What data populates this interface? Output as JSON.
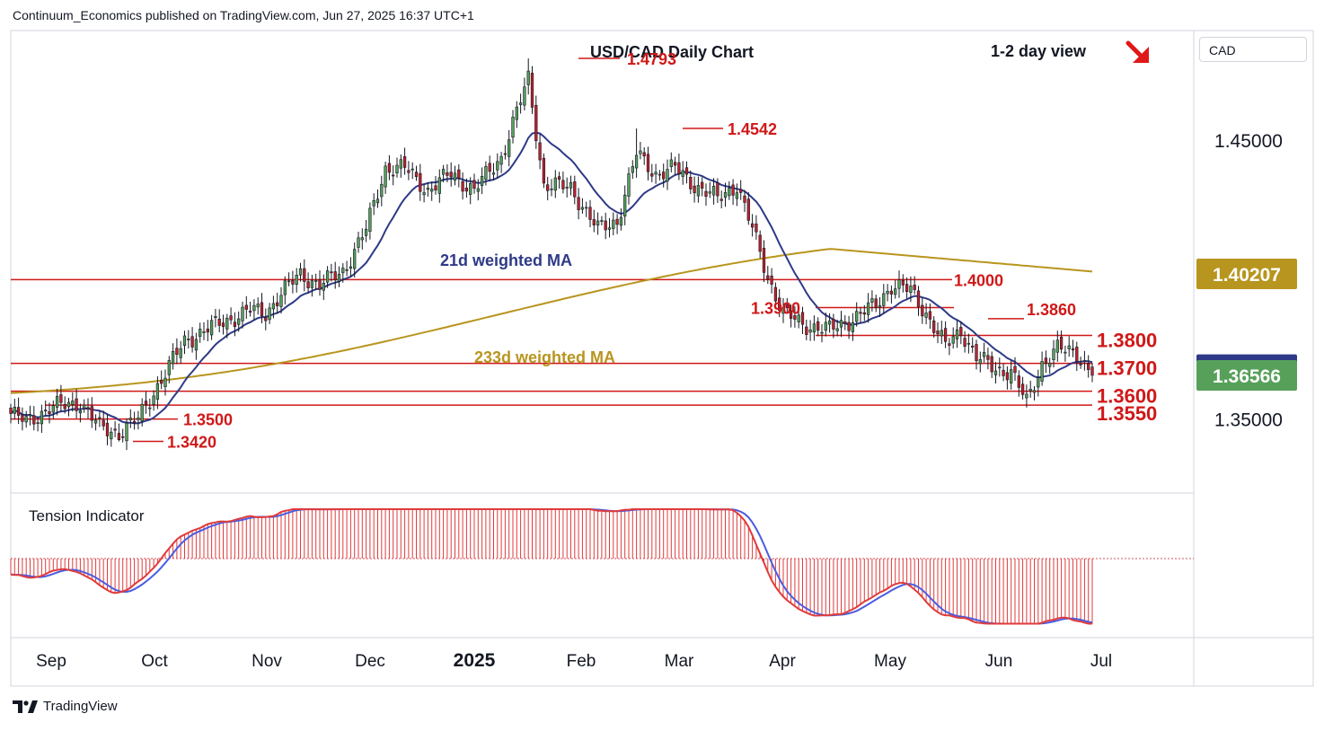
{
  "header": {
    "published_by": "Continuum_Economics published on TradingView.com, Jun 27, 2025 16:37 UTC+1"
  },
  "branding": {
    "label": "TradingView"
  },
  "currency_selector": {
    "label": "CAD"
  },
  "chart_data": {
    "type": "candlestick",
    "title": "USD/CAD Daily Chart",
    "view_label": "1-2 day view",
    "view_direction": "down",
    "x_tick_labels": [
      "Sep",
      "Oct",
      "Nov",
      "Dec",
      "2025",
      "Feb",
      "Mar",
      "Apr",
      "May",
      "Jun",
      "Jul"
    ],
    "y_tick_labels": [
      "1.45000",
      "1.35000"
    ],
    "ylim": [
      1.3235,
      1.4893
    ],
    "grid": false,
    "price_badges": [
      {
        "label": "1.40207",
        "value": 1.40207,
        "color": "#b8951e"
      },
      {
        "label": "1.36771",
        "value": 1.36771,
        "color": "#2e3a87"
      },
      {
        "label": "1.36566",
        "value": 1.36566,
        "color": "#57a05a"
      }
    ],
    "moving_averages": [
      {
        "name": "21d weighted MA",
        "color": "#2e3a87"
      },
      {
        "name": "233d weighted MA",
        "color": "#b8951e"
      }
    ],
    "support_resistance": [
      {
        "label": "1.4793",
        "value": 1.4793
      },
      {
        "label": "1.4542",
        "value": 1.4542
      },
      {
        "label": "1.4000",
        "value": 1.4
      },
      {
        "label": "1.3900",
        "value": 1.39
      },
      {
        "label": "1.3860",
        "value": 1.386
      },
      {
        "label": "1.3800",
        "value": 1.38
      },
      {
        "label": "1.3700",
        "value": 1.37
      },
      {
        "label": "1.3600",
        "value": 1.36
      },
      {
        "label": "1.3550",
        "value": 1.355
      },
      {
        "label": "1.3500",
        "value": 1.35
      },
      {
        "label": "1.3420",
        "value": 1.342
      }
    ],
    "ohlc_key_points": [
      {
        "date": "2024-08-28",
        "close": 1.352
      },
      {
        "date": "2024-09-25",
        "close": 1.345
      },
      {
        "date": "2024-11-25",
        "close": 1.41
      },
      {
        "date": "2024-12-20",
        "close": 1.44
      },
      {
        "date": "2025-02-03",
        "high": 1.4793
      },
      {
        "date": "2025-02-14",
        "close": 1.418
      },
      {
        "date": "2025-03-04",
        "high": 1.4542
      },
      {
        "date": "2025-04-11",
        "close": 1.388
      },
      {
        "date": "2025-05-14",
        "close": 1.398
      },
      {
        "date": "2025-06-16",
        "close": 1.356
      },
      {
        "date": "2025-06-27",
        "close": 1.3657
      }
    ],
    "subpanel": {
      "name": "Tension Indicator",
      "series_colors": {
        "histogram": "#e03b3b",
        "fast": "#e03b3b",
        "slow": "#4a5de0"
      }
    },
    "colors": {
      "up_candle": "#57a05a",
      "down_candle": "#c0212b",
      "levels": "#d01818",
      "label_text": "#d01818"
    }
  }
}
